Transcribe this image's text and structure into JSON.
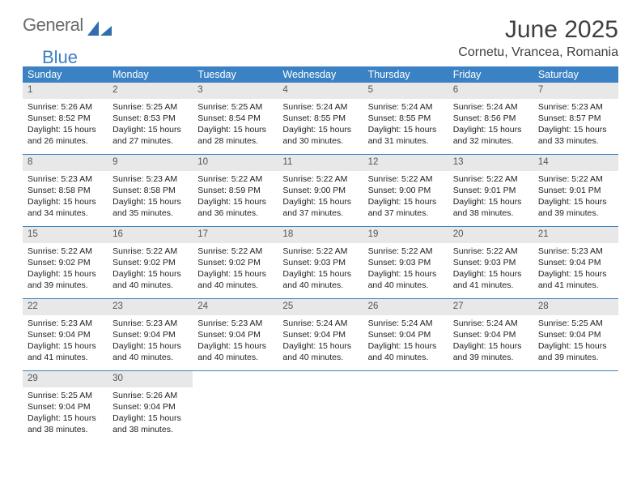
{
  "brand": {
    "part1": "General",
    "part2": "Blue"
  },
  "title": "June 2025",
  "location": "Cornetu, Vrancea, Romania",
  "accent_color": "#3b82c4",
  "header_bg": "#3b82c4",
  "daynum_bg": "#e8e8e8",
  "weekdays": [
    "Sunday",
    "Monday",
    "Tuesday",
    "Wednesday",
    "Thursday",
    "Friday",
    "Saturday"
  ],
  "weeks": [
    [
      {
        "n": "1",
        "sr": "5:26 AM",
        "ss": "8:52 PM",
        "dl": "15 hours and 26 minutes."
      },
      {
        "n": "2",
        "sr": "5:25 AM",
        "ss": "8:53 PM",
        "dl": "15 hours and 27 minutes."
      },
      {
        "n": "3",
        "sr": "5:25 AM",
        "ss": "8:54 PM",
        "dl": "15 hours and 28 minutes."
      },
      {
        "n": "4",
        "sr": "5:24 AM",
        "ss": "8:55 PM",
        "dl": "15 hours and 30 minutes."
      },
      {
        "n": "5",
        "sr": "5:24 AM",
        "ss": "8:55 PM",
        "dl": "15 hours and 31 minutes."
      },
      {
        "n": "6",
        "sr": "5:24 AM",
        "ss": "8:56 PM",
        "dl": "15 hours and 32 minutes."
      },
      {
        "n": "7",
        "sr": "5:23 AM",
        "ss": "8:57 PM",
        "dl": "15 hours and 33 minutes."
      }
    ],
    [
      {
        "n": "8",
        "sr": "5:23 AM",
        "ss": "8:58 PM",
        "dl": "15 hours and 34 minutes."
      },
      {
        "n": "9",
        "sr": "5:23 AM",
        "ss": "8:58 PM",
        "dl": "15 hours and 35 minutes."
      },
      {
        "n": "10",
        "sr": "5:22 AM",
        "ss": "8:59 PM",
        "dl": "15 hours and 36 minutes."
      },
      {
        "n": "11",
        "sr": "5:22 AM",
        "ss": "9:00 PM",
        "dl": "15 hours and 37 minutes."
      },
      {
        "n": "12",
        "sr": "5:22 AM",
        "ss": "9:00 PM",
        "dl": "15 hours and 37 minutes."
      },
      {
        "n": "13",
        "sr": "5:22 AM",
        "ss": "9:01 PM",
        "dl": "15 hours and 38 minutes."
      },
      {
        "n": "14",
        "sr": "5:22 AM",
        "ss": "9:01 PM",
        "dl": "15 hours and 39 minutes."
      }
    ],
    [
      {
        "n": "15",
        "sr": "5:22 AM",
        "ss": "9:02 PM",
        "dl": "15 hours and 39 minutes."
      },
      {
        "n": "16",
        "sr": "5:22 AM",
        "ss": "9:02 PM",
        "dl": "15 hours and 40 minutes."
      },
      {
        "n": "17",
        "sr": "5:22 AM",
        "ss": "9:02 PM",
        "dl": "15 hours and 40 minutes."
      },
      {
        "n": "18",
        "sr": "5:22 AM",
        "ss": "9:03 PM",
        "dl": "15 hours and 40 minutes."
      },
      {
        "n": "19",
        "sr": "5:22 AM",
        "ss": "9:03 PM",
        "dl": "15 hours and 40 minutes."
      },
      {
        "n": "20",
        "sr": "5:22 AM",
        "ss": "9:03 PM",
        "dl": "15 hours and 41 minutes."
      },
      {
        "n": "21",
        "sr": "5:23 AM",
        "ss": "9:04 PM",
        "dl": "15 hours and 41 minutes."
      }
    ],
    [
      {
        "n": "22",
        "sr": "5:23 AM",
        "ss": "9:04 PM",
        "dl": "15 hours and 41 minutes."
      },
      {
        "n": "23",
        "sr": "5:23 AM",
        "ss": "9:04 PM",
        "dl": "15 hours and 40 minutes."
      },
      {
        "n": "24",
        "sr": "5:23 AM",
        "ss": "9:04 PM",
        "dl": "15 hours and 40 minutes."
      },
      {
        "n": "25",
        "sr": "5:24 AM",
        "ss": "9:04 PM",
        "dl": "15 hours and 40 minutes."
      },
      {
        "n": "26",
        "sr": "5:24 AM",
        "ss": "9:04 PM",
        "dl": "15 hours and 40 minutes."
      },
      {
        "n": "27",
        "sr": "5:24 AM",
        "ss": "9:04 PM",
        "dl": "15 hours and 39 minutes."
      },
      {
        "n": "28",
        "sr": "5:25 AM",
        "ss": "9:04 PM",
        "dl": "15 hours and 39 minutes."
      }
    ],
    [
      {
        "n": "29",
        "sr": "5:25 AM",
        "ss": "9:04 PM",
        "dl": "15 hours and 38 minutes."
      },
      {
        "n": "30",
        "sr": "5:26 AM",
        "ss": "9:04 PM",
        "dl": "15 hours and 38 minutes."
      },
      null,
      null,
      null,
      null,
      null
    ]
  ],
  "labels": {
    "sunrise": "Sunrise:",
    "sunset": "Sunset:",
    "daylight": "Daylight:"
  }
}
